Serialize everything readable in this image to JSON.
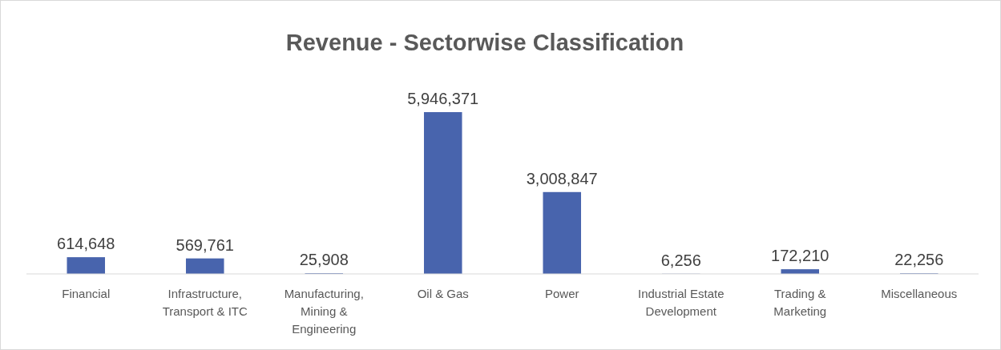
{
  "chart_data": {
    "type": "bar",
    "title": "Revenue - Sectorwise Classification",
    "categories": [
      "Financial",
      "Infrastructure, Transport & ITC",
      "Manufacturing, Mining & Engineering",
      "Oil & Gas",
      "Power",
      "Industrial Estate Development",
      "Trading & Marketing",
      "Miscellaneous"
    ],
    "values": [
      614648,
      569761,
      25908,
      5946371,
      3008847,
      6256,
      172210,
      22256
    ],
    "value_labels": [
      "614,648",
      "569,761",
      "25,908",
      "5,946,371",
      "3,008,847",
      "6,256",
      "172,210",
      "22,256"
    ],
    "color": "#4864ad"
  }
}
